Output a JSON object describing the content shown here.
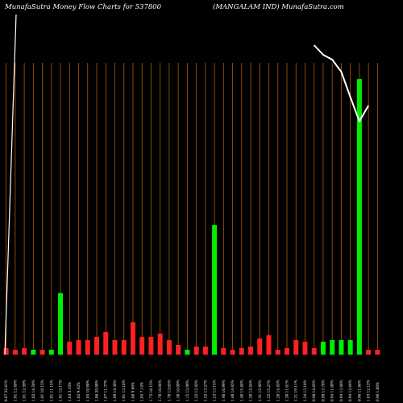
{
  "header": {
    "left": "MunafaSutra  Money Flow  Charts for 537800",
    "right": "(MANGALAM IND) MunafaSutra.com"
  },
  "colors": {
    "background": "#000000",
    "gridline": "#b05a00",
    "up_bar": "#00ee00",
    "down_bar": "#ff2020",
    "price_line": "#ffffff"
  },
  "chart_data": {
    "type": "bar",
    "title": "",
    "xlabel": "",
    "ylabel": "",
    "grid": true,
    "categories": [
      "0.67 22.41%",
      "1.01 12.49%",
      "1.01 12.59%",
      "1.02 14.50%",
      "1.01 10.15%",
      "1.01 11.14%",
      "1.01 12.17%",
      "1.03 3.10%",
      "1.02 9.42%",
      "1.05 10.90%",
      "1.06 20.90%",
      "1.07 11.37%",
      "1.09 14.30%",
      "1.01 13.18%",
      "1.06 9.96%",
      "1.05 7.14%",
      "1.73 16.15%",
      "1.70 16.06%",
      "1.70 13.65%",
      "1.30 10.09%",
      "1.15 12.90%",
      "1.22 13.42%",
      "1.52 13.27%",
      "1.23 13.14%",
      "1.40 16.99%",
      "1.40 14.45%",
      "1.40 15.46%",
      "1.28 14.44%",
      "1.41 15.46%",
      "1.25 15.27%",
      "1.28 14.45%",
      "1.30 11.61%",
      "1.21 19.11%",
      "1.24 13.18%",
      "0.98 14.85%",
      "0.98 13.76%",
      "0.94 11.80%",
      "0.94 13.48%",
      "0.94 12.64%",
      "0.96 11.86%",
      "1.03 12.12%",
      "0.96 1.00%"
    ],
    "values": [
      4,
      3,
      4,
      3,
      3,
      3,
      38,
      8,
      9,
      9,
      11,
      14,
      9,
      9,
      20,
      11,
      11,
      13,
      9,
      6,
      3,
      5,
      5,
      80,
      4,
      3,
      4,
      5,
      10,
      12,
      3,
      4,
      9,
      8,
      4,
      8,
      9,
      9,
      9,
      170,
      3,
      3
    ],
    "bar_colors": [
      "red",
      "red",
      "red",
      "green",
      "red",
      "green",
      "green",
      "red",
      "red",
      "red",
      "red",
      "red",
      "red",
      "red",
      "red",
      "red",
      "red",
      "red",
      "red",
      "red",
      "green",
      "red",
      "red",
      "green",
      "red",
      "red",
      "red",
      "red",
      "red",
      "red",
      "red",
      "red",
      "red",
      "red",
      "red",
      "green",
      "green",
      "green",
      "green",
      "green",
      "red",
      "red"
    ],
    "price_line": {
      "points": [
        [
          34,
          0
        ],
        [
          35,
          8
        ],
        [
          36,
          12
        ],
        [
          37,
          22
        ],
        [
          38,
          43
        ],
        [
          39,
          63
        ],
        [
          40,
          50
        ]
      ],
      "ylim": [
        0,
        100
      ]
    },
    "ylim": [
      0,
      180
    ]
  }
}
